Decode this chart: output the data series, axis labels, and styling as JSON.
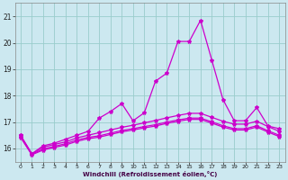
{
  "xlabel": "Windchill (Refroidissement éolien,°C)",
  "background_color": "#cce8f0",
  "grid_color": "#99cccc",
  "line_color": "#cc00cc",
  "x_values": [
    0,
    1,
    2,
    3,
    4,
    5,
    6,
    7,
    8,
    9,
    10,
    11,
    12,
    13,
    14,
    15,
    16,
    17,
    18,
    19,
    20,
    21,
    22,
    23
  ],
  "series1": [
    16.5,
    15.8,
    16.1,
    16.2,
    16.35,
    16.5,
    16.65,
    17.15,
    17.4,
    17.7,
    17.05,
    17.35,
    18.55,
    18.85,
    20.05,
    20.05,
    20.85,
    19.35,
    17.85,
    17.05,
    17.05,
    17.55,
    16.85,
    16.75
  ],
  "series2": [
    16.5,
    15.8,
    16.05,
    16.15,
    16.25,
    16.4,
    16.5,
    16.6,
    16.7,
    16.8,
    16.88,
    16.97,
    17.06,
    17.16,
    17.25,
    17.33,
    17.33,
    17.18,
    17.03,
    16.92,
    16.92,
    17.03,
    16.83,
    16.65
  ],
  "series3": [
    16.45,
    15.78,
    15.98,
    16.08,
    16.18,
    16.32,
    16.42,
    16.48,
    16.58,
    16.68,
    16.75,
    16.83,
    16.9,
    17.0,
    17.08,
    17.15,
    17.15,
    17.01,
    16.86,
    16.75,
    16.75,
    16.86,
    16.67,
    16.5
  ],
  "series4": [
    16.42,
    15.76,
    15.94,
    16.04,
    16.13,
    16.27,
    16.37,
    16.43,
    16.53,
    16.63,
    16.7,
    16.78,
    16.85,
    16.95,
    17.03,
    17.1,
    17.1,
    16.96,
    16.81,
    16.7,
    16.7,
    16.81,
    16.62,
    16.45
  ],
  "ylim": [
    15.5,
    21.5
  ],
  "ytick_locs": [
    16,
    17,
    18,
    19,
    20,
    21
  ],
  "ytick_labels": [
    "16",
    "17",
    "18",
    "19",
    "20",
    "21"
  ],
  "xlim": [
    -0.5,
    23.5
  ],
  "xtick_locs": [
    0,
    1,
    2,
    3,
    4,
    5,
    6,
    7,
    8,
    9,
    10,
    11,
    12,
    13,
    14,
    15,
    16,
    17,
    18,
    19,
    20,
    21,
    22,
    23
  ],
  "marker": "*",
  "markersize": 3,
  "linewidth": 0.9
}
